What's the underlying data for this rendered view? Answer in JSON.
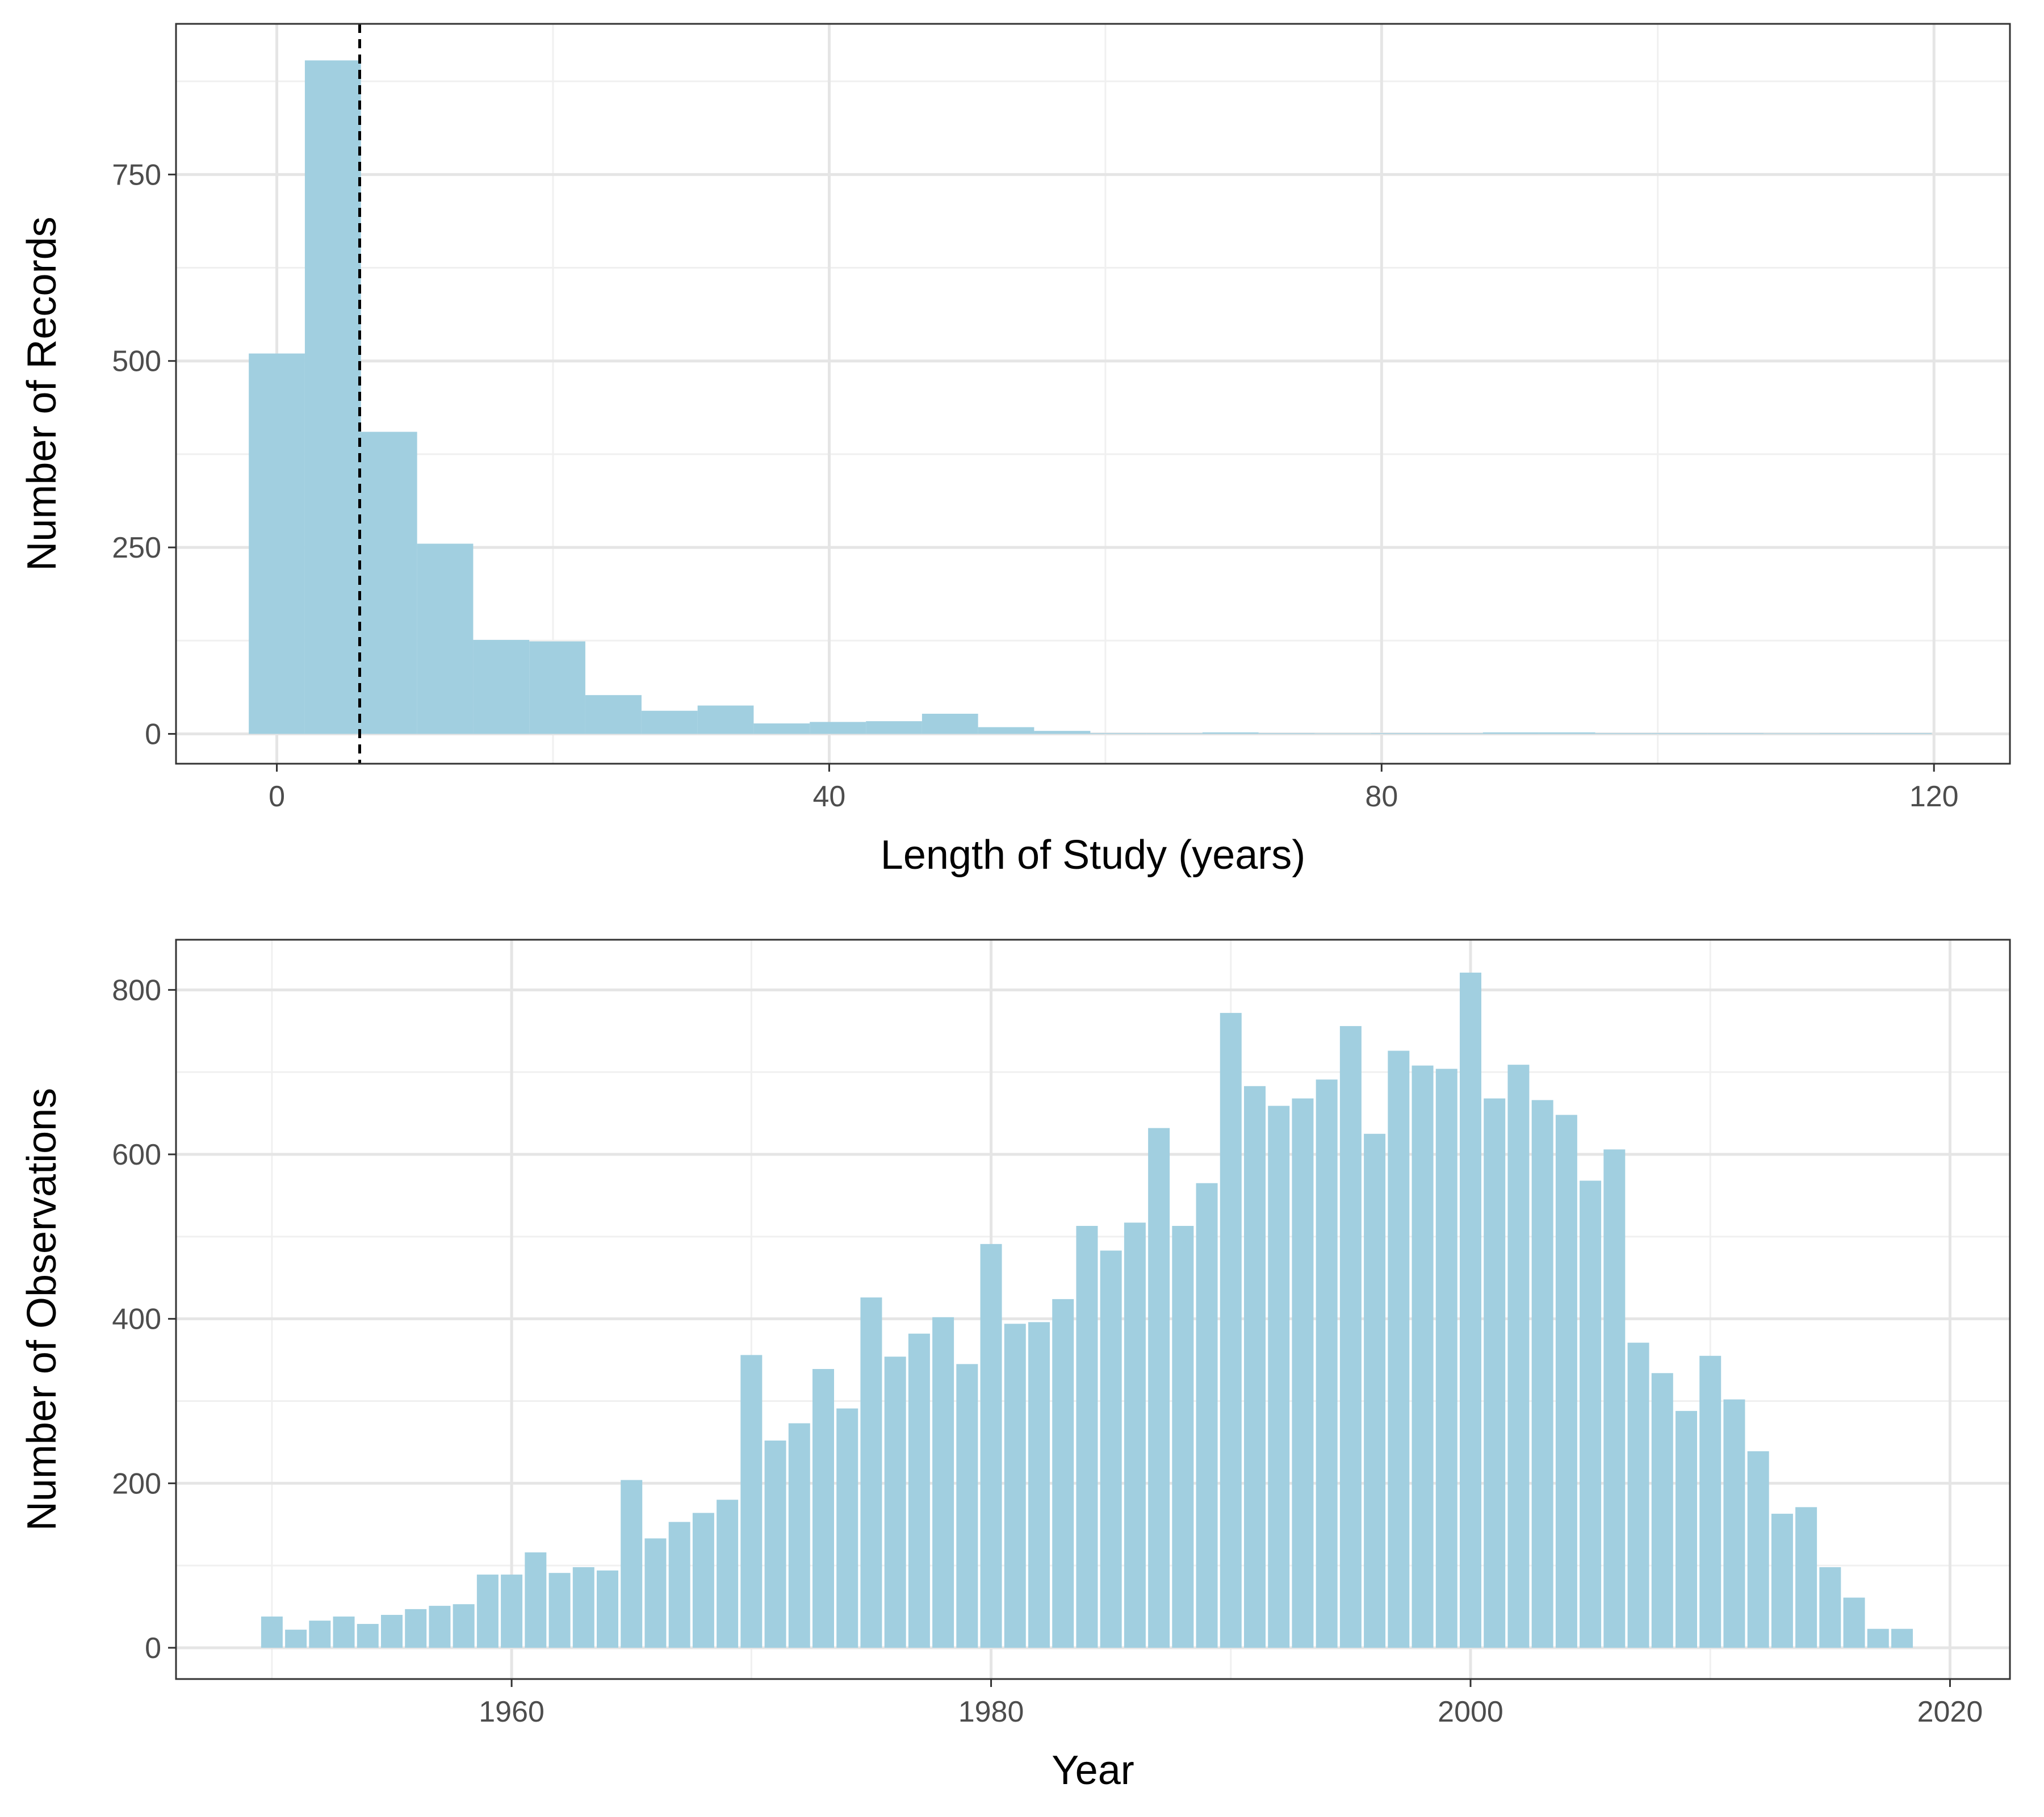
{
  "colors": {
    "bar_fill": "#a1cfe0",
    "grid_major": "#e5e5e5",
    "grid_minor": "#f0f0f0",
    "panel_border": "#333333",
    "reference_line": "#000000"
  },
  "chart_data": [
    {
      "type": "bar",
      "subtype": "histogram",
      "xlabel": "Length of Study (years)",
      "ylabel": "Number of Records",
      "xlim": [
        -7.3,
        125.5
      ],
      "ylim": [
        -40,
        952
      ],
      "x_ticks": [
        0,
        40,
        80,
        120
      ],
      "y_ticks": [
        0,
        250,
        500,
        750
      ],
      "grid": true,
      "bin_width": 4.0625,
      "bins": [
        {
          "x0": -2.03,
          "x1": 2.03,
          "count": 510
        },
        {
          "x0": 2.03,
          "x1": 6.09,
          "count": 903
        },
        {
          "x0": 6.09,
          "x1": 10.16,
          "count": 405
        },
        {
          "x0": 10.16,
          "x1": 14.22,
          "count": 255
        },
        {
          "x0": 14.22,
          "x1": 18.28,
          "count": 126
        },
        {
          "x0": 18.28,
          "x1": 22.34,
          "count": 124
        },
        {
          "x0": 22.34,
          "x1": 26.41,
          "count": 52
        },
        {
          "x0": 26.41,
          "x1": 30.47,
          "count": 31
        },
        {
          "x0": 30.47,
          "x1": 34.53,
          "count": 38
        },
        {
          "x0": 34.53,
          "x1": 38.59,
          "count": 14
        },
        {
          "x0": 38.59,
          "x1": 42.66,
          "count": 16
        },
        {
          "x0": 42.66,
          "x1": 46.72,
          "count": 17
        },
        {
          "x0": 46.72,
          "x1": 50.78,
          "count": 27
        },
        {
          "x0": 50.78,
          "x1": 54.84,
          "count": 9
        },
        {
          "x0": 54.84,
          "x1": 58.91,
          "count": 4
        },
        {
          "x0": 58.91,
          "x1": 62.97,
          "count": 1
        },
        {
          "x0": 62.97,
          "x1": 67.03,
          "count": 1
        },
        {
          "x0": 67.03,
          "x1": 71.09,
          "count": 2
        },
        {
          "x0": 71.09,
          "x1": 75.16,
          "count": 1
        },
        {
          "x0": 75.16,
          "x1": 79.22,
          "count": 0
        },
        {
          "x0": 79.22,
          "x1": 83.28,
          "count": 1
        },
        {
          "x0": 83.28,
          "x1": 87.34,
          "count": 1
        },
        {
          "x0": 87.34,
          "x1": 91.41,
          "count": 2
        },
        {
          "x0": 91.41,
          "x1": 95.47,
          "count": 2
        },
        {
          "x0": 95.47,
          "x1": 99.53,
          "count": 1
        },
        {
          "x0": 99.53,
          "x1": 103.59,
          "count": 1
        },
        {
          "x0": 103.59,
          "x1": 107.66,
          "count": 1
        },
        {
          "x0": 107.66,
          "x1": 111.72,
          "count": 0
        },
        {
          "x0": 111.72,
          "x1": 115.78,
          "count": 1
        },
        {
          "x0": 115.78,
          "x1": 119.84,
          "count": 1
        }
      ],
      "reference_line": {
        "x": 6.0,
        "style": "dashed"
      }
    },
    {
      "type": "bar",
      "xlabel": "Year",
      "ylabel": "Number of Observations",
      "xlim": [
        1946,
        2022.5
      ],
      "ylim": [
        -38,
        861
      ],
      "x_ticks": [
        1960,
        1980,
        2000,
        2020
      ],
      "y_ticks": [
        0,
        200,
        400,
        600,
        800
      ],
      "grid": true,
      "x": [
        1950,
        1951,
        1952,
        1953,
        1954,
        1955,
        1956,
        1957,
        1958,
        1959,
        1960,
        1961,
        1962,
        1963,
        1964,
        1965,
        1966,
        1967,
        1968,
        1969,
        1970,
        1971,
        1972,
        1973,
        1974,
        1975,
        1976,
        1977,
        1978,
        1979,
        1980,
        1981,
        1982,
        1983,
        1984,
        1985,
        1986,
        1987,
        1988,
        1989,
        1990,
        1991,
        1992,
        1993,
        1994,
        1995,
        1996,
        1997,
        1998,
        1999,
        2000,
        2001,
        2002,
        2003,
        2004,
        2005,
        2006,
        2007,
        2008,
        2009,
        2010,
        2011,
        2012,
        2013,
        2014,
        2015,
        2016,
        2017,
        2018
      ],
      "values": [
        38,
        22,
        33,
        38,
        29,
        40,
        47,
        51,
        53,
        89,
        89,
        116,
        91,
        98,
        94,
        204,
        133,
        153,
        164,
        180,
        356,
        252,
        273,
        339,
        291,
        426,
        354,
        382,
        402,
        345,
        491,
        394,
        396,
        424,
        513,
        483,
        517,
        632,
        513,
        565,
        772,
        683,
        659,
        668,
        691,
        756,
        625,
        726,
        708,
        704,
        821,
        668,
        709,
        666,
        648,
        568,
        606,
        371,
        334,
        288,
        355,
        302,
        239,
        163,
        171,
        98,
        61,
        23,
        23
      ]
    }
  ]
}
